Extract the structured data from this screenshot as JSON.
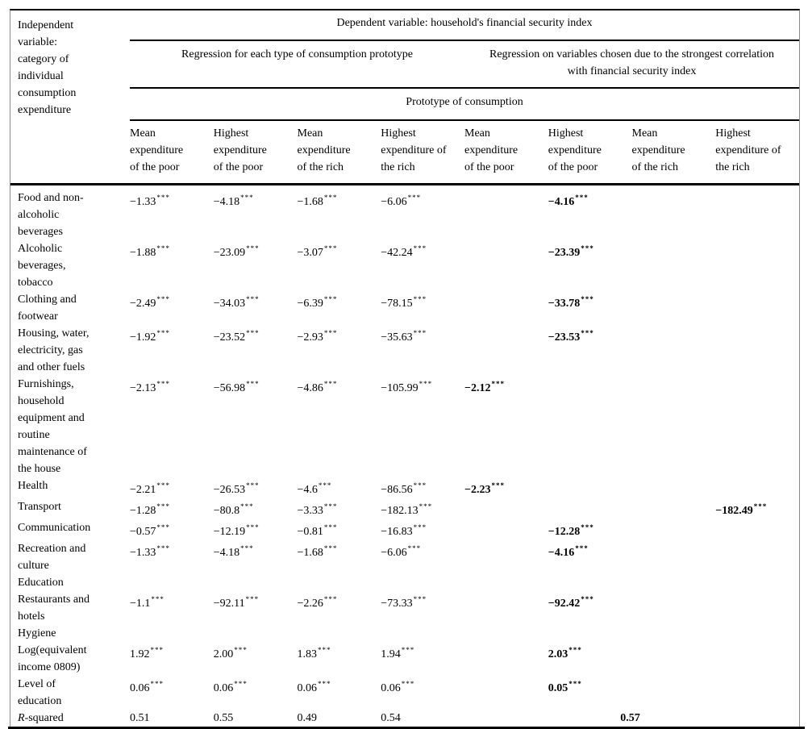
{
  "table": {
    "corner_label": "Independent\nvariable:\ncategory of\nindividual\nconsumption\nexpenditure",
    "dependent_header": "Dependent variable: household's financial security index",
    "group_headers": [
      "Regression for each type of consumption prototype",
      "Regression on variables chosen due to the strongest correlation\nwith financial security index"
    ],
    "prototype_header": "Prototype of consumption",
    "column_headers": [
      "Mean\nexpenditure\nof the poor",
      "Highest\nexpenditure\nof the poor",
      "Mean\nexpenditure\nof the rich",
      "Highest\nexpenditure of\nthe rich",
      "Mean\nexpenditure\nof the poor",
      "Highest\nexpenditure\nof the poor",
      "Mean\nexpenditure\nof the rich",
      "Highest\nexpenditure of\nthe rich"
    ],
    "significance_marker": "***",
    "rows": [
      {
        "label": "Food and non-\nalcoholic\nbeverages",
        "cells": [
          {
            "v": "−1.33",
            "sig": true
          },
          {
            "v": "−4.18",
            "sig": true
          },
          {
            "v": "−1.68",
            "sig": true
          },
          {
            "v": "−6.06",
            "sig": true
          },
          null,
          {
            "v": "−4.16",
            "sig": true,
            "bold": true
          },
          null,
          null
        ]
      },
      {
        "label": "Alcoholic\nbeverages,\ntobacco",
        "cells": [
          {
            "v": "−1.88",
            "sig": true
          },
          {
            "v": "−23.09",
            "sig": true
          },
          {
            "v": "−3.07",
            "sig": true
          },
          {
            "v": "−42.24",
            "sig": true
          },
          null,
          {
            "v": "−23.39",
            "sig": true,
            "bold": true
          },
          null,
          null
        ]
      },
      {
        "label": "Clothing and\nfootwear",
        "cells": [
          {
            "v": "−2.49",
            "sig": true
          },
          {
            "v": "−34.03",
            "sig": true
          },
          {
            "v": "−6.39",
            "sig": true
          },
          {
            "v": "−78.15",
            "sig": true
          },
          null,
          {
            "v": "−33.78",
            "sig": true,
            "bold": true
          },
          null,
          null
        ]
      },
      {
        "label": "Housing, water,\nelectricity, gas\nand other fuels",
        "cells": [
          {
            "v": "−1.92",
            "sig": true
          },
          {
            "v": "−23.52",
            "sig": true
          },
          {
            "v": "−2.93",
            "sig": true
          },
          {
            "v": "−35.63",
            "sig": true
          },
          null,
          {
            "v": "−23.53",
            "sig": true,
            "bold": true
          },
          null,
          null
        ]
      },
      {
        "label": "Furnishings,\nhousehold\nequipment and\nroutine\nmaintenance of\nthe house",
        "cells": [
          {
            "v": "−2.13",
            "sig": true
          },
          {
            "v": "−56.98",
            "sig": true
          },
          {
            "v": "−4.86",
            "sig": true
          },
          {
            "v": "−105.99",
            "sig": true
          },
          {
            "v": "−2.12",
            "sig": true,
            "bold": true
          },
          null,
          null,
          null
        ]
      },
      {
        "label": "Health",
        "cells": [
          {
            "v": "−2.21",
            "sig": true
          },
          {
            "v": "−26.53",
            "sig": true
          },
          {
            "v": "−4.6",
            "sig": true
          },
          {
            "v": "−86.56",
            "sig": true
          },
          {
            "v": "−2.23",
            "sig": true,
            "bold": true
          },
          null,
          null,
          null
        ]
      },
      {
        "label": "Transport",
        "cells": [
          {
            "v": "−1.28",
            "sig": true
          },
          {
            "v": "−80.8",
            "sig": true
          },
          {
            "v": "−3.33",
            "sig": true
          },
          {
            "v": "−182.13",
            "sig": true
          },
          null,
          null,
          null,
          {
            "v": "−182.49",
            "sig": true,
            "bold": true
          }
        ]
      },
      {
        "label": "Communication",
        "cells": [
          {
            "v": "−0.57",
            "sig": true
          },
          {
            "v": "−12.19",
            "sig": true
          },
          {
            "v": "−0.81",
            "sig": true
          },
          {
            "v": "−16.83",
            "sig": true
          },
          null,
          {
            "v": "−12.28",
            "sig": true,
            "bold": true
          },
          null,
          null
        ]
      },
      {
        "label": "Recreation and\nculture",
        "cells": [
          {
            "v": "−1.33",
            "sig": true
          },
          {
            "v": "−4.18",
            "sig": true
          },
          {
            "v": "−1.68",
            "sig": true
          },
          {
            "v": "−6.06",
            "sig": true
          },
          null,
          {
            "v": "−4.16",
            "sig": true,
            "bold": true
          },
          null,
          null
        ]
      },
      {
        "label": "Education",
        "cells": [
          null,
          null,
          null,
          null,
          null,
          null,
          null,
          null
        ]
      },
      {
        "label": "Restaurants and\nhotels",
        "cells": [
          {
            "v": "−1.1",
            "sig": true
          },
          {
            "v": "−92.11",
            "sig": true
          },
          {
            "v": "−2.26",
            "sig": true
          },
          {
            "v": "−73.33",
            "sig": true
          },
          null,
          {
            "v": "−92.42",
            "sig": true,
            "bold": true
          },
          null,
          null
        ]
      },
      {
        "label": "Hygiene",
        "cells": [
          null,
          null,
          null,
          null,
          null,
          null,
          null,
          null
        ]
      },
      {
        "label": "Log(equivalent\nincome 0809)",
        "cells": [
          {
            "v": "1.92",
            "sig": true
          },
          {
            "v": "2.00",
            "sig": true
          },
          {
            "v": "1.83",
            "sig": true
          },
          {
            "v": "1.94",
            "sig": true
          },
          null,
          {
            "v": "2.03",
            "sig": true,
            "bold": true
          },
          null,
          null
        ]
      },
      {
        "label": "Level of\neducation",
        "cells": [
          {
            "v": "0.06",
            "sig": true
          },
          {
            "v": "0.06",
            "sig": true
          },
          {
            "v": "0.06",
            "sig": true
          },
          {
            "v": "0.06",
            "sig": true
          },
          null,
          {
            "v": "0.05",
            "sig": true,
            "bold": true
          },
          null,
          null
        ]
      },
      {
        "label_italic": "R",
        "label_rest": "-squared",
        "cells": [
          {
            "v": "0.51"
          },
          {
            "v": "0.55"
          },
          {
            "v": "0.49"
          },
          {
            "v": "0.54"
          },
          {
            "v": "0.57",
            "bold": true,
            "colspan": 4,
            "align": "center"
          }
        ]
      }
    ]
  }
}
